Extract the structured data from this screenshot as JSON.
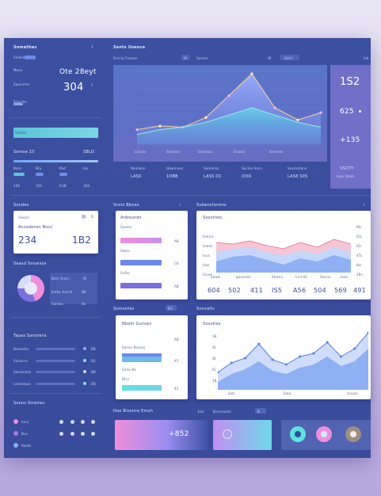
{
  "sidebar": {
    "header": "Somethas",
    "header_mark": "I",
    "subtitle": "Smalls",
    "row1_label": "Moos",
    "big_value": "Ote 28eyt",
    "label_a": "Spencher",
    "value_a": "304",
    "value_a_suffix": "1",
    "label_b": "Snacles",
    "section_title": "Serose 10",
    "section_value": "SBLO",
    "stats": [
      "Bare",
      "Bro",
      "Pad",
      "Ios"
    ],
    "stats_values": [
      "1SS",
      "12S",
      "EGB",
      "1ES"
    ],
    "sub_header": "Sonolores"
  },
  "main_header": {
    "title": "Sents Usence",
    "left_tab": "Scoria Fromos",
    "tab_badge": "IA",
    "tab2": "Sonels",
    "tab3_badge": "IB",
    "tab3": "Sorls",
    "right_badge": "Iah"
  },
  "hero": {
    "kpi1": "1S2",
    "kpi2": "625",
    "kpi3": "+135",
    "kpi_bottom": "VSCTY",
    "kpi_bottom_sub": "Iaou Sleds",
    "x_labels": [
      "Lilosts",
      "Sonems",
      "Grooloss",
      "Enosts",
      "Sroenes"
    ],
    "metrics": [
      {
        "label": "Romions",
        "value": "LAS0"
      },
      {
        "label": "Hoonnons",
        "value": "1OBB"
      },
      {
        "label": "Somenss",
        "value": "LASS O1"
      },
      {
        "label": "Socios Ancs",
        "value": "IOSS"
      },
      {
        "label": "Snomatans",
        "value": "LAS8 S0S"
      }
    ]
  },
  "left_card": {
    "title": "Sondes",
    "subtitle": "Sesols",
    "badge": "D",
    "inner": "Accodenes Bocs",
    "value1": "234",
    "value2": "1B2",
    "footer": "Seasd Sonaisos"
  },
  "pie_panel": {
    "rows": [
      "Bosr Srarn",
      "Eelbs Arorld",
      "Saroes"
    ],
    "values": [
      "Bl",
      "IBl",
      "Bo"
    ]
  },
  "list_panel": {
    "title": "Tapas Sanotens",
    "items": [
      "Bossetns",
      "Slosorss",
      "Sanenosts",
      "Lonestaos"
    ],
    "values": [
      "BB",
      "BS",
      "BB",
      "BB"
    ]
  },
  "bottom_left": {
    "title": "Soons Sinaires",
    "rows": [
      "Inco",
      "Bus",
      "Rosta"
    ]
  },
  "mid_col": {
    "header": "Snsts Bboes",
    "card_title": "Anbounds",
    "rows": [
      {
        "label": "Sooms",
        "value": "AB"
      },
      {
        "label": "Sotes",
        "value": "C8"
      },
      {
        "label": "Snfas",
        "value": "AB"
      },
      {
        "label": "Sobes",
        "value": "45"
      },
      {
        "label": "Sloss",
        "value": "4B"
      }
    ],
    "lower_header": "Somontes",
    "lower_badge": "BG",
    "lower_card_title": "Nbom Gunses",
    "lower_rows": [
      {
        "label": "Sanas Rosses",
        "value": "AB"
      },
      {
        "label": "Sngns",
        "value": "45"
      },
      {
        "label": "Snne Bo",
        "value": "B2"
      },
      {
        "label": "Dlcs",
        "value": "45"
      }
    ]
  },
  "area_card_top": {
    "header": "Subenshorens",
    "title": "Sosnities",
    "y_labels": [
      "Isouns",
      "Isoles",
      "Ious",
      "Isos",
      "ISoes"
    ],
    "right_labels": [
      "IBs",
      "IGs",
      "ISs",
      "4Ts",
      "Ibs",
      "2Bs"
    ],
    "x_labels": [
      "Sowd",
      "gonored",
      "Shosis",
      "Ccrl-Et",
      "Sonns",
      "Ioos"
    ],
    "bottom_values": [
      "604",
      "502",
      "411",
      "IS5",
      "A56",
      "504",
      "569",
      "491"
    ]
  },
  "area_card_bottom": {
    "header": "Sonvaits",
    "title": "Sosoites",
    "y_labels": [
      "1B",
      "IB",
      "IB",
      "IG",
      "1B"
    ],
    "x_labels": [
      "Sab",
      "Sloo",
      "Insoos"
    ]
  },
  "bottom_row": {
    "label_left": "Hoe Blostrre Emoh",
    "label_mid": "Eds",
    "label_mid2": "Bonsnonts",
    "badge": "B",
    "value": "+852"
  },
  "chart_data": {
    "type": "area",
    "series": [
      {
        "values": [
          12,
          15,
          14,
          22,
          40,
          58,
          30,
          20,
          26
        ]
      },
      {
        "values": [
          8,
          12,
          14,
          18,
          24,
          30,
          24,
          18,
          14
        ]
      }
    ]
  },
  "colors": {
    "board": "#3c4fa0",
    "accent_blue": "#6d9cf2",
    "accent_pink": "#ef8edb",
    "accent_teal": "#5ee2e0",
    "accent_purple": "#7b6fe0"
  }
}
